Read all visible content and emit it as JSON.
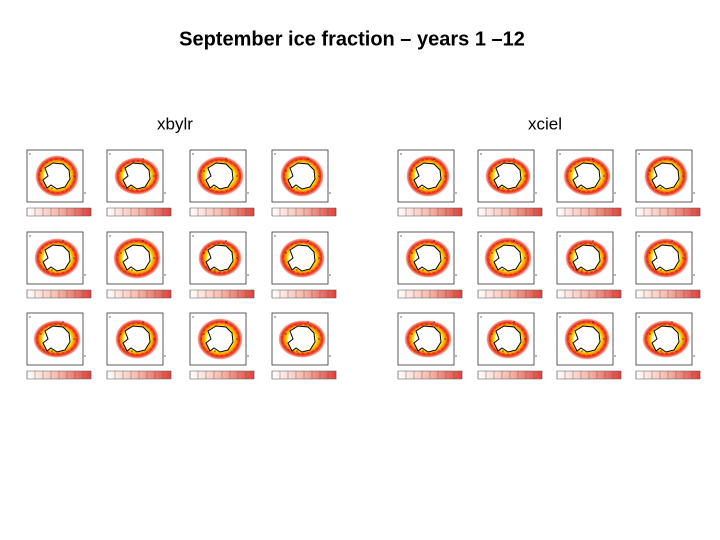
{
  "header": {
    "title": "September ice fraction – years 1 –12"
  },
  "panels": [
    {
      "label": "xbylr"
    },
    {
      "label": "xciel"
    }
  ]
}
